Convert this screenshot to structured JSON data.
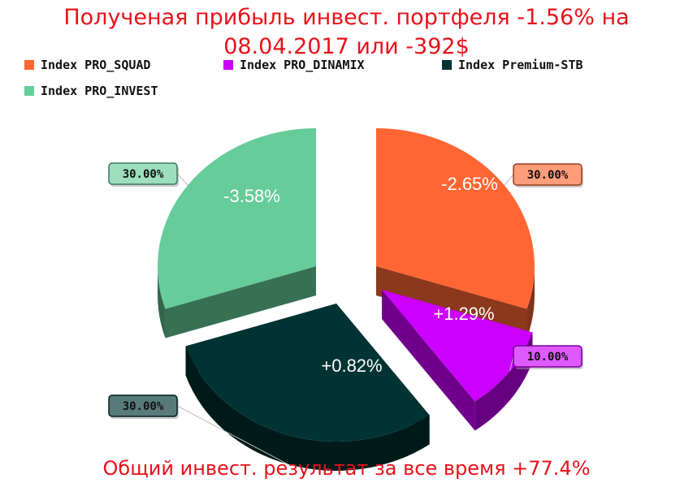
{
  "title": "Полученая прибыль инвест. портфеля -1.56% на 08.04.2017 или -392$",
  "footer": "Общий инвест. результат за все время +77.4%",
  "legend": [
    {
      "label": "Index PRO_SQUAD",
      "color": "#ff6633"
    },
    {
      "label": "Index PRO_DINAMIX",
      "color": "#cc00ff"
    },
    {
      "label": "Index Premium-STB",
      "color": "#003333"
    },
    {
      "label": "Index PRO_INVEST",
      "color": "#66cc99"
    }
  ],
  "chart_data": {
    "type": "pie",
    "style": "3d-exploded",
    "legend_position": "top-left",
    "series": [
      {
        "name": "Index PRO_SQUAD",
        "share": "30.00%",
        "share_value": 30,
        "result": "-2.65%",
        "color": "#ff6633"
      },
      {
        "name": "Index PRO_DINAMIX",
        "share": "10.00%",
        "share_value": 10,
        "result": "+1.29%",
        "color": "#cc00ff"
      },
      {
        "name": "Index Premium-STB",
        "share": "30.00%",
        "share_value": 30,
        "result": "+0.82%",
        "color": "#003333"
      },
      {
        "name": "Index PRO_INVEST",
        "share": "30.00%",
        "share_value": 30,
        "result": "-3.58%",
        "color": "#66cc99"
      }
    ]
  }
}
